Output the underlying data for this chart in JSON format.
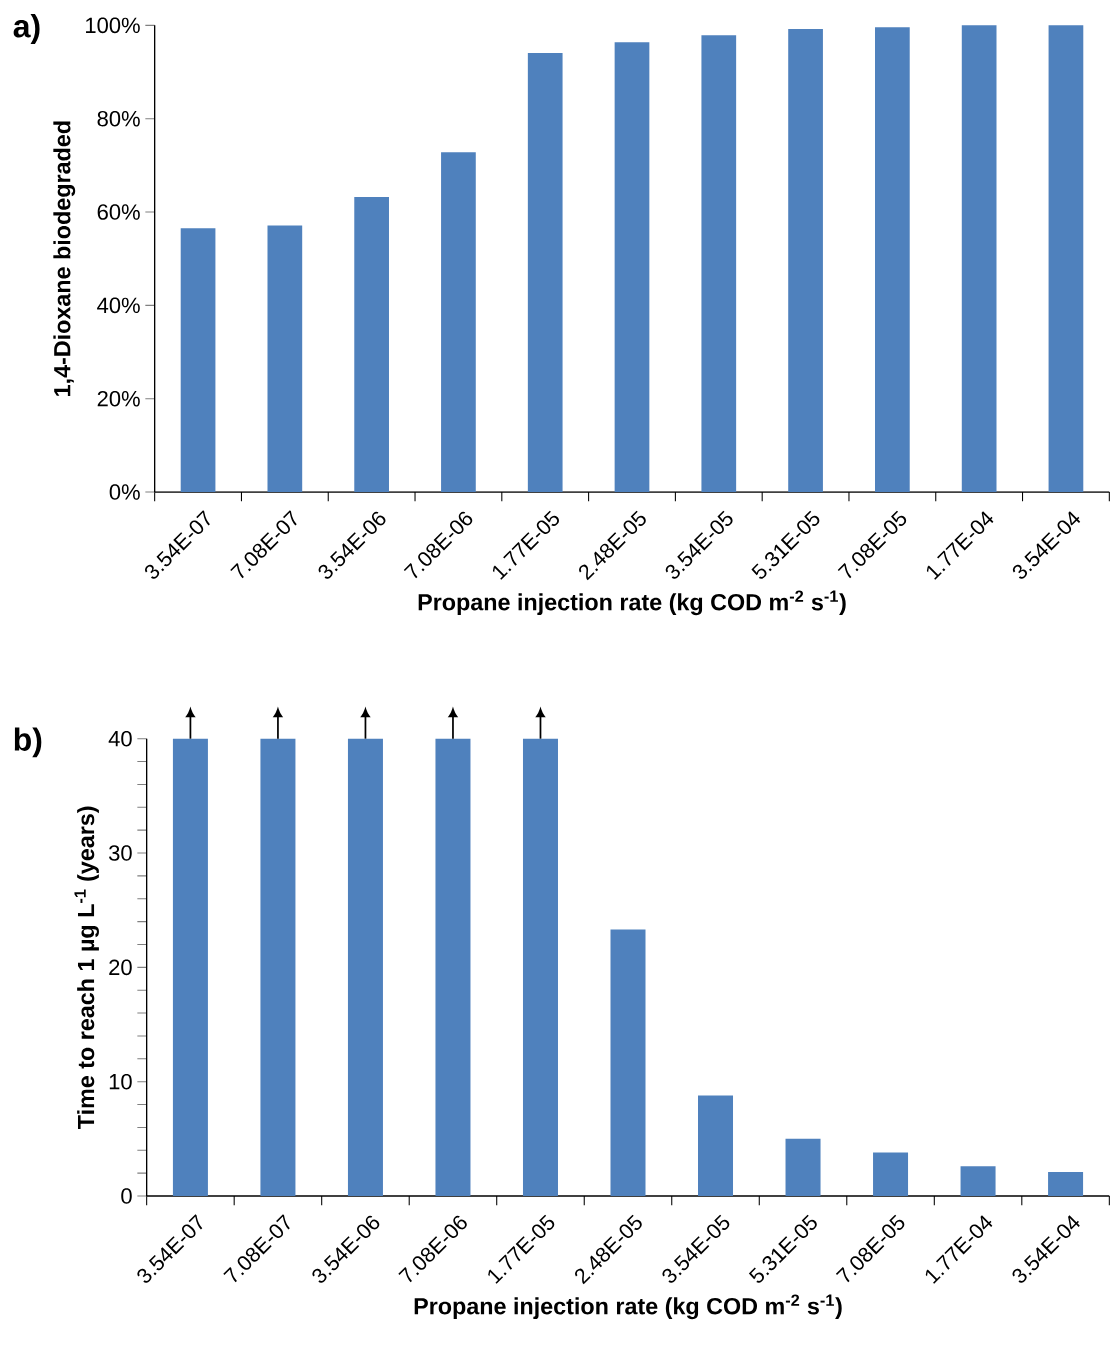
{
  "chart_data": [
    {
      "type": "bar",
      "title": "a)",
      "xlabel": "Propane injection rate (kg COD m$^{-2}$ s$^{-1}$)",
      "ylabel": "1,4-Dioxane biodegraded",
      "categories": [
        "3.54E-07",
        "7.08E-07",
        "3.54E-06",
        "7.08E-06",
        "1.77E-05",
        "2.48E-05",
        "3.54E-05",
        "5.31E-05",
        "7.08E-05",
        "1.77E-04",
        "3.54E-04"
      ],
      "values": [
        56.5,
        57.1,
        63.2,
        72.8,
        94.1,
        96.4,
        97.9,
        99.2,
        99.6,
        100,
        100
      ],
      "color": "#4f81bd",
      "ylim": [
        0,
        100
      ],
      "yticks": [
        {
          "value": 0,
          "label": "0%"
        },
        {
          "value": 20,
          "label": "20%"
        },
        {
          "value": 40,
          "label": "40%"
        },
        {
          "value": 60,
          "label": "60%"
        },
        {
          "value": 80,
          "label": "80%"
        },
        {
          "value": 100,
          "label": "100%"
        }
      ]
    },
    {
      "type": "bar",
      "title": "b)",
      "xlabel": "Propane injection rate (kg COD m$^{-2}$ s$^{-1}$)",
      "ylabel": "Time to reach 1 µg L$^{-1}$ (years)",
      "categories": [
        "3.54E-07",
        "7.08E-07",
        "3.54E-06",
        "7.08E-06",
        "1.77E-05",
        "2.48E-05",
        "3.54E-05",
        "5.31E-05",
        "7.08E-05",
        "1.77E-04",
        "3.54E-04"
      ],
      "values": [
        40,
        40,
        40,
        40,
        40,
        23.3,
        8.8,
        5.0,
        3.8,
        2.6,
        2.1
      ],
      "color": "#4f81bd",
      "ylim": [
        0,
        40
      ],
      "yticks": [
        0,
        10,
        20,
        30,
        40
      ]
    }
  ]
}
